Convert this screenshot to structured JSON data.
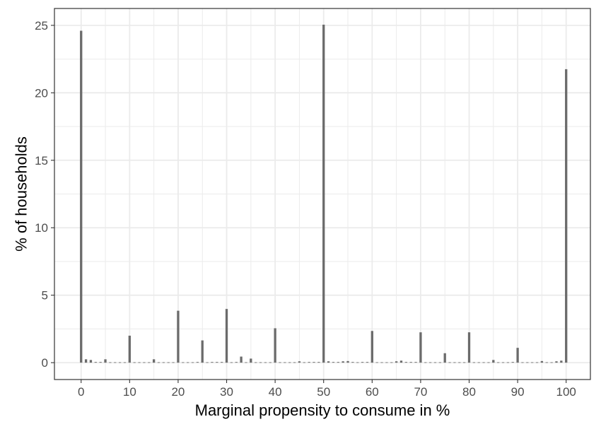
{
  "chart_data": {
    "type": "bar",
    "title": "",
    "xlabel": "Marginal propensity to consume in %",
    "ylabel": "% of households",
    "xlim": [
      -5.5,
      105
    ],
    "ylim": [
      -1.25,
      26.25
    ],
    "xticks": [
      0,
      10,
      20,
      30,
      40,
      50,
      60,
      70,
      80,
      90,
      100
    ],
    "yticks": [
      0,
      5,
      10,
      15,
      20,
      25
    ],
    "grid": true,
    "legend": "none",
    "colors": {
      "bar": "#6b6b6b",
      "grid": "#ebebeb",
      "panel_border": "#333333",
      "tick": "#4d4d4d"
    },
    "x": [
      0,
      1,
      2,
      3,
      4,
      5,
      6,
      7,
      8,
      9,
      10,
      11,
      12,
      13,
      14,
      15,
      16,
      17,
      18,
      19,
      20,
      21,
      22,
      23,
      24,
      25,
      26,
      27,
      28,
      29,
      30,
      31,
      32,
      33,
      34,
      35,
      36,
      37,
      38,
      39,
      40,
      41,
      42,
      43,
      44,
      45,
      46,
      47,
      48,
      49,
      50,
      51,
      52,
      53,
      54,
      55,
      56,
      57,
      58,
      59,
      60,
      61,
      62,
      63,
      64,
      65,
      66,
      67,
      68,
      69,
      70,
      71,
      72,
      73,
      74,
      75,
      76,
      77,
      78,
      79,
      80,
      81,
      82,
      83,
      84,
      85,
      86,
      87,
      88,
      89,
      90,
      91,
      92,
      93,
      94,
      95,
      96,
      97,
      98,
      99,
      100
    ],
    "values": [
      24.6,
      0.25,
      0.2,
      0.05,
      0.05,
      0.25,
      0.03,
      0.03,
      0.03,
      0.03,
      2.0,
      0.03,
      0.03,
      0.03,
      0.03,
      0.25,
      0.03,
      0.03,
      0.03,
      0.03,
      3.85,
      0.03,
      0.03,
      0.03,
      0.05,
      1.65,
      0.03,
      0.05,
      0.05,
      0.05,
      3.98,
      0.03,
      0.05,
      0.45,
      0.03,
      0.3,
      0.03,
      0.03,
      0.03,
      0.03,
      2.55,
      0.03,
      0.03,
      0.03,
      0.03,
      0.1,
      0.03,
      0.05,
      0.05,
      0.05,
      25.05,
      0.1,
      0.05,
      0.05,
      0.1,
      0.12,
      0.05,
      0.03,
      0.05,
      0.05,
      2.35,
      0.03,
      0.03,
      0.03,
      0.03,
      0.1,
      0.15,
      0.05,
      0.05,
      0.05,
      2.25,
      0.03,
      0.03,
      0.03,
      0.03,
      0.7,
      0.03,
      0.03,
      0.03,
      0.03,
      2.25,
      0.03,
      0.03,
      0.03,
      0.03,
      0.2,
      0.03,
      0.03,
      0.03,
      0.05,
      1.1,
      0.03,
      0.03,
      0.03,
      0.03,
      0.12,
      0.03,
      0.03,
      0.1,
      0.15,
      21.75
    ]
  }
}
